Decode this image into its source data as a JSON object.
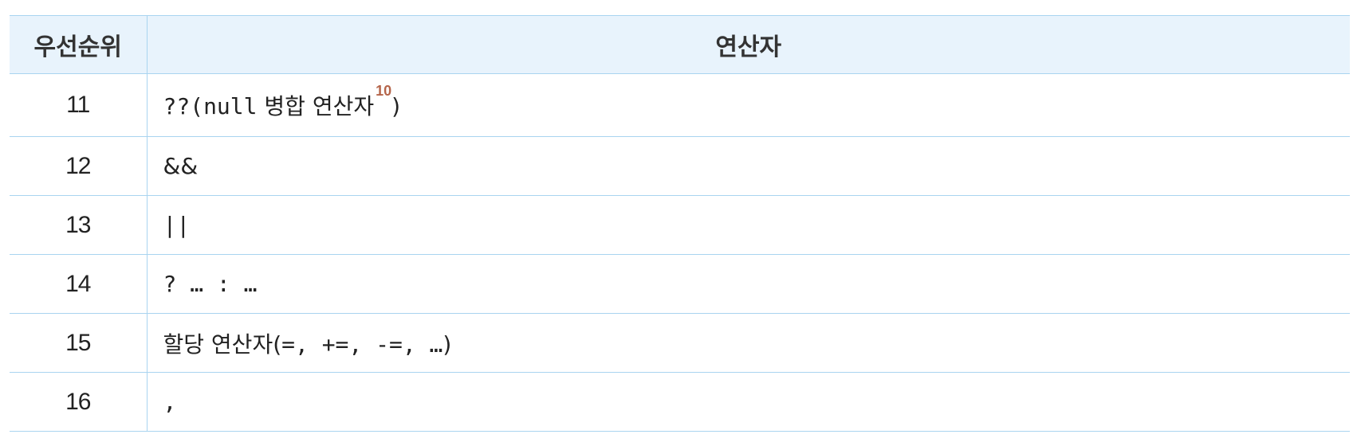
{
  "table": {
    "headers": {
      "rank": "우선순위",
      "operator": "연산자"
    },
    "rows": [
      {
        "rank": "11",
        "op_prefix": "??(",
        "op_code": "null",
        "op_text": " 병합 연산자",
        "footnote": "10",
        "op_suffix": ")"
      },
      {
        "rank": "12",
        "op": "&&"
      },
      {
        "rank": "13",
        "op": "||"
      },
      {
        "rank": "14",
        "op": "? … : …"
      },
      {
        "rank": "15",
        "op_text": "할당 연산자(",
        "op_code": "=, +=, -=, …",
        "op_suffix": ")"
      },
      {
        "rank": "16",
        "op": ","
      }
    ]
  }
}
